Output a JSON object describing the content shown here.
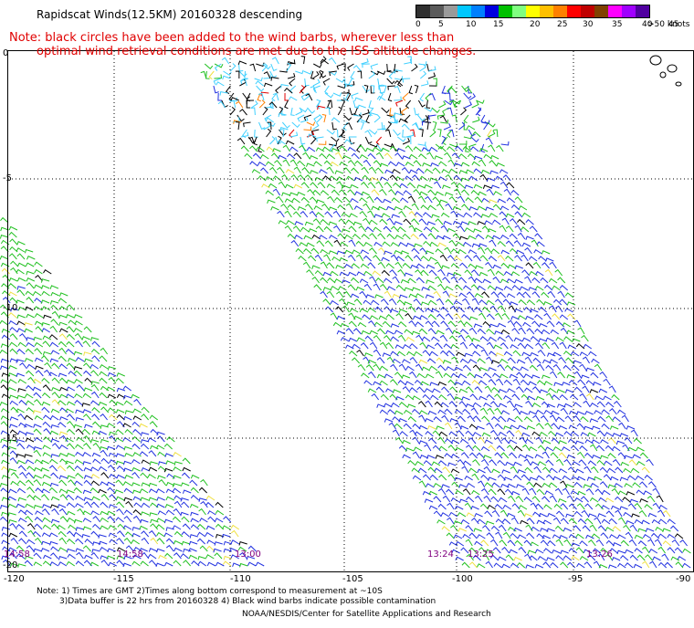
{
  "title": "Rapidscat Winds(12.5KM) 20160328 descending",
  "note": {
    "line1": "Note: black circles have been added to the wind barbs, wherever less than",
    "line2": "optimal wind retrieval conditions are met due to the ISS altitude changes."
  },
  "legend": {
    "colors": [
      "#303030",
      "#5a5a5a",
      "#9a9a9a",
      "#00c8ff",
      "#0080ff",
      "#0000e0",
      "#00c000",
      "#80ff80",
      "#ffff00",
      "#ffc000",
      "#ff8000",
      "#ff0000",
      "#c00000",
      "#804000",
      "#ff00ff",
      "#a000ff",
      "#5000a0"
    ],
    "labels": [
      "0",
      "5",
      "10",
      "15",
      "20",
      "25",
      "30",
      "35",
      "40",
      "45",
      ">50 knots"
    ]
  },
  "map": {
    "lat_labels": [
      "0",
      "-5",
      "-10",
      "-15",
      "-20"
    ],
    "lon_labels": [
      "-120",
      "-115",
      "-110",
      "-105",
      "-100",
      "-95",
      "-90"
    ],
    "time_labels": [
      "14:58",
      "14:58",
      "13:00",
      "13:24",
      "13:25",
      "13:26"
    ],
    "colors": {
      "grid": "#000000",
      "barb_cyan": "#40d0ff",
      "barb_green": "#20c020",
      "barb_blue": "#2030e0",
      "barb_black": "#000000",
      "barb_yellow": "#f0e040",
      "barb_orange": "#ff8000",
      "barb_red": "#e00000",
      "land": "#000000"
    }
  },
  "footer": {
    "line1": "Note: 1) Times are GMT 2)Times along bottom correspond to measurement at ~10S",
    "line2": "3)Data buffer is 22 hrs from 20160328 4) Black wind barbs indicate possible contamination",
    "line3": "NOAA/NESDIS/Center for Satellite Applications and Research"
  }
}
